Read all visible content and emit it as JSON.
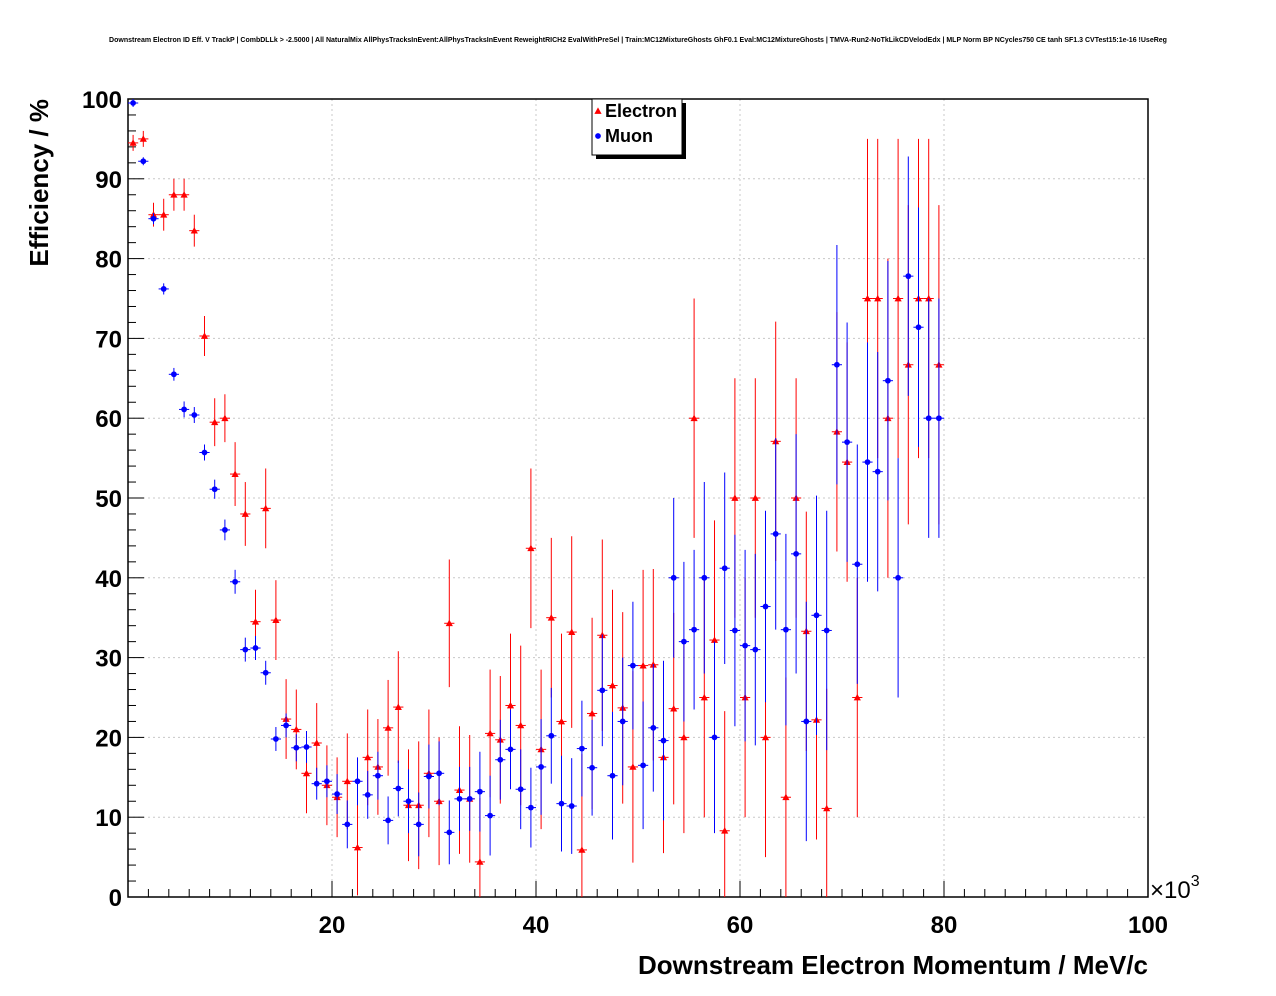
{
  "chart_data": {
    "type": "scatter",
    "title": "Downstream Electron ID Eff. V TrackP | CombDLLk > -2.5000 | All NaturalMix AllPhysTracksInEvent:AllPhysTracksInEvent ReweightRICH2 EvalWithPreSel | Train:MC12MixtureGhosts GhF0.1 Eval:MC12MixtureGhosts | TMVA-Run2-NoTkLikCDVelodEdx | MLP Norm BP NCycles750 CE tanh SF1.3 CVTest15:1e-16 !UseReg",
    "xlabel": "Downstream Electron Momentum / MeV/c",
    "ylabel": "Efficiency / %",
    "x_multiplier_label": "×10",
    "x_multiplier_exponent": "3",
    "xlim": [
      0,
      100000
    ],
    "ylim": [
      0,
      100
    ],
    "x_ticks": [
      20000,
      40000,
      60000,
      80000,
      100000
    ],
    "x_tick_labels": [
      "20",
      "40",
      "60",
      "80",
      "100"
    ],
    "y_ticks": [
      0,
      10,
      20,
      30,
      40,
      50,
      60,
      70,
      80,
      90,
      100
    ],
    "y_tick_labels": [
      "0",
      "10",
      "20",
      "30",
      "40",
      "50",
      "60",
      "70",
      "80",
      "90",
      "100"
    ],
    "grid": true,
    "legend_position": "top-center",
    "series": [
      {
        "name": "Electron",
        "marker": "triangle-up",
        "color": "#ff0000",
        "points": [
          [
            0,
            94.5,
            1
          ],
          [
            1000,
            95,
            1
          ],
          [
            2000,
            85.5,
            1.5
          ],
          [
            3000,
            85.5,
            2
          ],
          [
            4000,
            88,
            2
          ],
          [
            5000,
            88,
            2
          ],
          [
            6000,
            83.5,
            2
          ],
          [
            7000,
            70.3,
            2.5
          ],
          [
            8000,
            59.5,
            3
          ],
          [
            9000,
            60,
            3
          ],
          [
            10000,
            53,
            4
          ],
          [
            11000,
            48,
            4
          ],
          [
            12000,
            34.5,
            4
          ],
          [
            13000,
            48.7,
            5
          ],
          [
            14000,
            34.7,
            5
          ],
          [
            15000,
            22.3,
            5
          ],
          [
            16000,
            21,
            5
          ],
          [
            17000,
            15.5,
            5
          ],
          [
            18000,
            19.3,
            5
          ],
          [
            19000,
            14,
            5
          ],
          [
            20000,
            12.5,
            5
          ],
          [
            21000,
            14.5,
            6
          ],
          [
            22000,
            6.2,
            6
          ],
          [
            23000,
            17.5,
            6
          ],
          [
            24000,
            16.3,
            6
          ],
          [
            25000,
            21.2,
            6
          ],
          [
            26000,
            23.8,
            7
          ],
          [
            27000,
            11.5,
            7
          ],
          [
            28000,
            11.5,
            8
          ],
          [
            29000,
            15.5,
            8
          ],
          [
            30000,
            12,
            8
          ],
          [
            31000,
            34.3,
            8
          ],
          [
            32000,
            13.4,
            8
          ],
          [
            33000,
            12.3,
            8
          ],
          [
            34000,
            4.4,
            8
          ],
          [
            35000,
            20.5,
            8
          ],
          [
            36000,
            19.7,
            8
          ],
          [
            37000,
            24,
            9
          ],
          [
            38000,
            21.5,
            10
          ],
          [
            39000,
            43.7,
            10
          ],
          [
            40000,
            18.5,
            10
          ],
          [
            41000,
            35,
            10
          ],
          [
            42000,
            22,
            11
          ],
          [
            43000,
            33.2,
            12
          ],
          [
            44000,
            5.9,
            12
          ],
          [
            45000,
            23,
            12
          ],
          [
            46000,
            32.8,
            12
          ],
          [
            47000,
            26.5,
            12
          ],
          [
            48000,
            23.7,
            12
          ],
          [
            49000,
            16.3,
            12
          ],
          [
            50000,
            29,
            12
          ],
          [
            51000,
            29.1,
            12
          ],
          [
            52000,
            17.5,
            12
          ],
          [
            53000,
            23.6,
            12
          ],
          [
            54000,
            20,
            12
          ],
          [
            55000,
            60,
            15
          ],
          [
            56000,
            25,
            15
          ],
          [
            57000,
            32.2,
            15
          ],
          [
            58000,
            8.3,
            15
          ],
          [
            59000,
            50,
            15
          ],
          [
            60000,
            25,
            15
          ],
          [
            61000,
            50,
            15
          ],
          [
            62000,
            20,
            15
          ],
          [
            63000,
            57.1,
            15
          ],
          [
            64000,
            12.5,
            15
          ],
          [
            65000,
            50,
            15
          ],
          [
            66000,
            33.3,
            15
          ],
          [
            67000,
            22.2,
            15
          ],
          [
            68000,
            11.1,
            15
          ],
          [
            69000,
            58.3,
            15
          ],
          [
            70000,
            54.5,
            15
          ],
          [
            71000,
            25,
            15
          ],
          [
            72000,
            75,
            20
          ],
          [
            73000,
            75,
            20
          ],
          [
            74000,
            60,
            20
          ],
          [
            75000,
            75,
            20
          ],
          [
            76000,
            66.7,
            20
          ],
          [
            77000,
            75,
            20
          ],
          [
            78000,
            75,
            20
          ],
          [
            79000,
            66.7,
            20
          ]
        ]
      },
      {
        "name": "Muon",
        "marker": "circle",
        "color": "#0000ff",
        "points": [
          [
            0,
            99.5,
            0.5
          ],
          [
            1000,
            92.2,
            0.5
          ],
          [
            2000,
            85,
            0.7
          ],
          [
            3000,
            76.2,
            0.7
          ],
          [
            4000,
            65.5,
            0.8
          ],
          [
            5000,
            61.1,
            1
          ],
          [
            6000,
            60.4,
            1
          ],
          [
            7000,
            55.7,
            1
          ],
          [
            8000,
            51.1,
            1.2
          ],
          [
            9000,
            46,
            1.3
          ],
          [
            10000,
            39.5,
            1.5
          ],
          [
            11000,
            31,
            1.5
          ],
          [
            12000,
            31.2,
            1.5
          ],
          [
            13000,
            28.1,
            1.5
          ],
          [
            14000,
            19.8,
            1.5
          ],
          [
            15000,
            21.5,
            1.5
          ],
          [
            16000,
            18.7,
            1.7
          ],
          [
            17000,
            18.8,
            2
          ],
          [
            18000,
            14.2,
            2
          ],
          [
            19000,
            14.5,
            2
          ],
          [
            20000,
            12.9,
            2.5
          ],
          [
            21000,
            9.1,
            3
          ],
          [
            22000,
            14.5,
            3
          ],
          [
            23000,
            12.8,
            3
          ],
          [
            24000,
            15.2,
            3
          ],
          [
            25000,
            9.6,
            3
          ],
          [
            26000,
            13.6,
            3.5
          ],
          [
            27000,
            12,
            4
          ],
          [
            28000,
            9.1,
            4
          ],
          [
            29000,
            15.1,
            4
          ],
          [
            30000,
            15.5,
            4
          ],
          [
            31000,
            8.1,
            4
          ],
          [
            32000,
            12.3,
            4
          ],
          [
            33000,
            12.3,
            4
          ],
          [
            34000,
            13.2,
            5
          ],
          [
            35000,
            10.2,
            5
          ],
          [
            36000,
            17.2,
            5
          ],
          [
            37000,
            18.5,
            5
          ],
          [
            38000,
            13.5,
            5
          ],
          [
            39000,
            11.2,
            5
          ],
          [
            40000,
            16.3,
            6
          ],
          [
            41000,
            20.2,
            6
          ],
          [
            42000,
            11.7,
            6
          ],
          [
            43000,
            11.4,
            6
          ],
          [
            44000,
            18.6,
            6
          ],
          [
            45000,
            16.2,
            6
          ],
          [
            46000,
            25.9,
            7
          ],
          [
            47000,
            15.2,
            8
          ],
          [
            48000,
            22,
            8
          ],
          [
            49000,
            29,
            8
          ],
          [
            50000,
            16.5,
            8
          ],
          [
            51000,
            21.2,
            8
          ],
          [
            52000,
            19.6,
            10
          ],
          [
            53000,
            40,
            10
          ],
          [
            54000,
            32,
            10
          ],
          [
            55000,
            33.5,
            10
          ],
          [
            56000,
            40,
            12
          ],
          [
            57000,
            20,
            12
          ],
          [
            58000,
            41.2,
            12
          ],
          [
            59000,
            33.4,
            12
          ],
          [
            60000,
            31.5,
            12
          ],
          [
            61000,
            31,
            12
          ],
          [
            62000,
            36.4,
            12
          ],
          [
            63000,
            45.5,
            12
          ],
          [
            64000,
            33.5,
            12
          ],
          [
            65000,
            43,
            15
          ],
          [
            66000,
            22,
            15
          ],
          [
            67000,
            35.3,
            15
          ],
          [
            68000,
            33.4,
            15
          ],
          [
            69000,
            66.7,
            15
          ],
          [
            70000,
            57,
            15
          ],
          [
            71000,
            41.7,
            15
          ],
          [
            72000,
            54.5,
            15
          ],
          [
            73000,
            53.3,
            15
          ],
          [
            74000,
            64.7,
            15
          ],
          [
            75000,
            40,
            15
          ],
          [
            76000,
            77.8,
            15
          ],
          [
            77000,
            71.4,
            15
          ],
          [
            78000,
            60,
            15
          ],
          [
            79000,
            60,
            15
          ]
        ]
      }
    ]
  }
}
